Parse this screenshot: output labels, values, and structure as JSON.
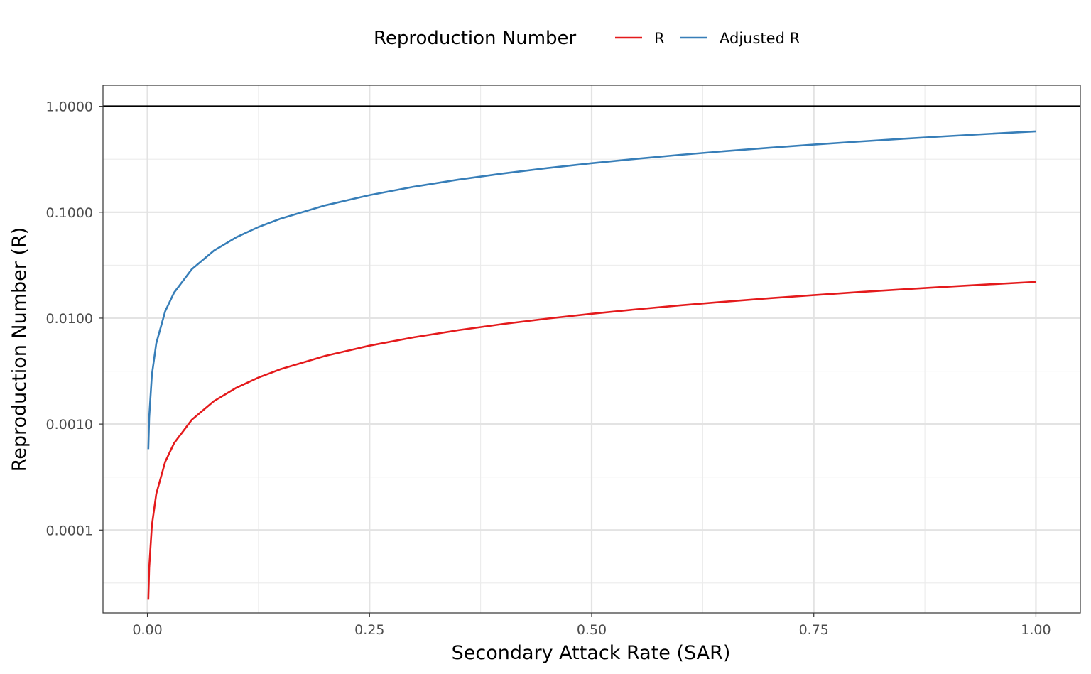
{
  "chart_data": {
    "type": "line",
    "xlabel": "Secondary Attack Rate (SAR)",
    "ylabel": "Reproduction Number (R)",
    "legend_title": "Reproduction Number",
    "legend_position": "top",
    "y_scale": "log10",
    "xlim": [
      -0.05,
      1.05
    ],
    "ylim": [
      1.65e-05,
      1.58
    ],
    "x_ticks": [
      0,
      0.25,
      0.5,
      0.75,
      1
    ],
    "x_tick_labels": [
      "0.00",
      "0.25",
      "0.50",
      "0.75",
      "1.00"
    ],
    "y_ticks": [
      0.0001,
      0.001,
      0.01,
      0.1,
      1
    ],
    "y_tick_labels": [
      "0.0001",
      "0.0010",
      "0.0100",
      "0.1000",
      "1.0000"
    ],
    "reference_line": {
      "y": 1,
      "color": "#000000"
    },
    "grid": true,
    "x": [
      0.001,
      0.002,
      0.005,
      0.01,
      0.02,
      0.03,
      0.05,
      0.075,
      0.1,
      0.125,
      0.15,
      0.2,
      0.25,
      0.3,
      0.35,
      0.4,
      0.45,
      0.5,
      0.55,
      0.6,
      0.65,
      0.7,
      0.75,
      0.8,
      0.85,
      0.9,
      0.95,
      1.0
    ],
    "series": [
      {
        "name": "R",
        "color": "#e41a1c",
        "values": [
          2.2e-05,
          4.4e-05,
          0.00011,
          0.00022,
          0.00044,
          0.00066,
          0.0011,
          0.00165,
          0.0022,
          0.00275,
          0.0033,
          0.0044,
          0.0055,
          0.0066,
          0.0077,
          0.0088,
          0.0099,
          0.011,
          0.0121,
          0.0132,
          0.0143,
          0.0154,
          0.0165,
          0.0176,
          0.0187,
          0.0198,
          0.0209,
          0.022
        ]
      },
      {
        "name": "Adjusted R",
        "color": "#377eb8",
        "values": [
          0.00058,
          0.00116,
          0.0029,
          0.0058,
          0.0116,
          0.0174,
          0.029,
          0.0435,
          0.058,
          0.0725,
          0.087,
          0.116,
          0.145,
          0.174,
          0.203,
          0.232,
          0.261,
          0.29,
          0.319,
          0.348,
          0.377,
          0.406,
          0.435,
          0.464,
          0.493,
          0.522,
          0.551,
          0.58
        ]
      }
    ]
  }
}
